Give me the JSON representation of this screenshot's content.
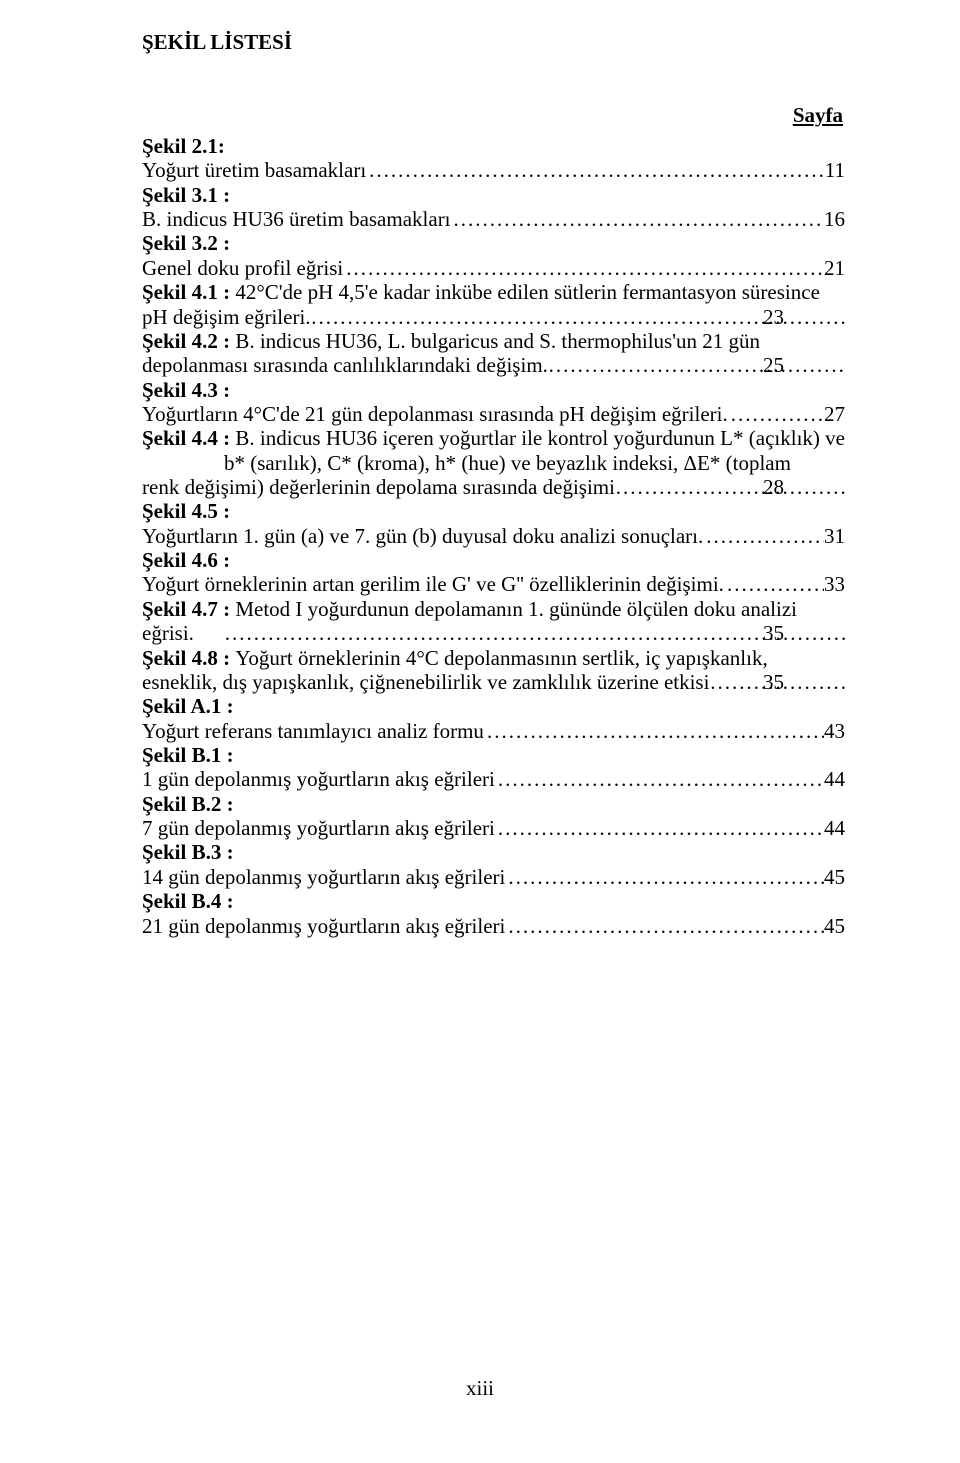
{
  "heading": "ŞEKİL LİSTESİ",
  "pageLabel": "Sayfa",
  "dotFill": "....................................................................................................................................................................",
  "footer": "xiii",
  "entries": [
    {
      "label": "Şekil 2.1: ",
      "pre": "",
      "last": "Yoğurt üretim basamakları",
      "page": "11",
      "hang": false
    },
    {
      "label": "Şekil 3.1 : ",
      "pre": "",
      "last": "B. indicus HU36 üretim basamakları",
      "page": "16",
      "hang": false
    },
    {
      "label": "Şekil 3.2 : ",
      "pre": "",
      "last": "Genel doku profil eğrisi",
      "page": "21",
      "hang": false
    },
    {
      "label": "Şekil 4.1 : ",
      "pre": "42°C'de pH 4,5'e kadar inkübe edilen sütlerin fermantasyon süresince ",
      "last": "pH değişim eğrileri.",
      "page": "23",
      "hang": true
    },
    {
      "label": "Şekil 4.2 : ",
      "pre": "B. indicus HU36, L. bulgaricus and S. thermophilus'un 21 gün ",
      "last": "depolanması sırasında canlılıklarındaki değişim. ",
      "page": "25",
      "hang": true
    },
    {
      "label": "Şekil 4.3 : ",
      "pre": "",
      "last": "Yoğurtların 4°C'de 21 gün depolanması sırasında pH değişim eğrileri.",
      "page": "27",
      "hang": false
    },
    {
      "label": "Şekil 4.4 : ",
      "pre": "B. indicus HU36 içeren yoğurtlar ile kontrol yoğurdunun L* (açıklık) ve b* (sarılık), C* (kroma), h* (hue) ve beyazlık indeksi, ΔE* (toplam ",
      "last": "renk değişimi)  değerlerinin depolama sırasında değişimi",
      "page": "28",
      "hang": true
    },
    {
      "label": "Şekil 4.5 : ",
      "pre": "",
      "last": "Yoğurtların 1. gün (a) ve 7. gün (b) duyusal doku analizi sonuçları. ",
      "page": "31",
      "hang": false
    },
    {
      "label": "Şekil 4.6 : ",
      "pre": "",
      "last": "Yoğurt örneklerinin artan gerilim ile G' ve G''  özelliklerinin değişimi. ",
      "page": "33",
      "hang": false
    },
    {
      "label": "Şekil 4.7 : ",
      "pre": "Metod I yoğurdunun depolamanın 1. gününde ölçülen doku analizi ",
      "last": "eğrisi.",
      "page": "35",
      "hang": true
    },
    {
      "label": "Şekil 4.8 : ",
      "pre": "Yoğurt örneklerinin 4°C depolanmasının sertlik, iç yapışkanlık, ",
      "last": "esneklik, dış yapışkanlık, çiğnenebilirlik ve zamklılık üzerine etkisi",
      "page": "35",
      "hang": true
    },
    {
      "label": "Şekil A.1 : ",
      "pre": "",
      "last": "Yoğurt referans tanımlayıcı analiz formu",
      "page": "43",
      "hang": false
    },
    {
      "label": "Şekil B.1 : ",
      "pre": "",
      "last": "1 gün depolanmış yoğurtların akış eğrileri",
      "page": "44",
      "hang": false
    },
    {
      "label": "Şekil B.2 : ",
      "pre": "",
      "last": "7 gün depolanmış yoğurtların akış eğrileri",
      "page": "44",
      "hang": false
    },
    {
      "label": "Şekil B.3 : ",
      "pre": "",
      "last": "14 gün depolanmış yoğurtların akış eğrileri",
      "page": "45",
      "hang": false
    },
    {
      "label": "Şekil B.4 : ",
      "pre": "",
      "last": "21 gün depolanmış yoğurtların akış eğrileri",
      "page": "45",
      "hang": false
    }
  ]
}
